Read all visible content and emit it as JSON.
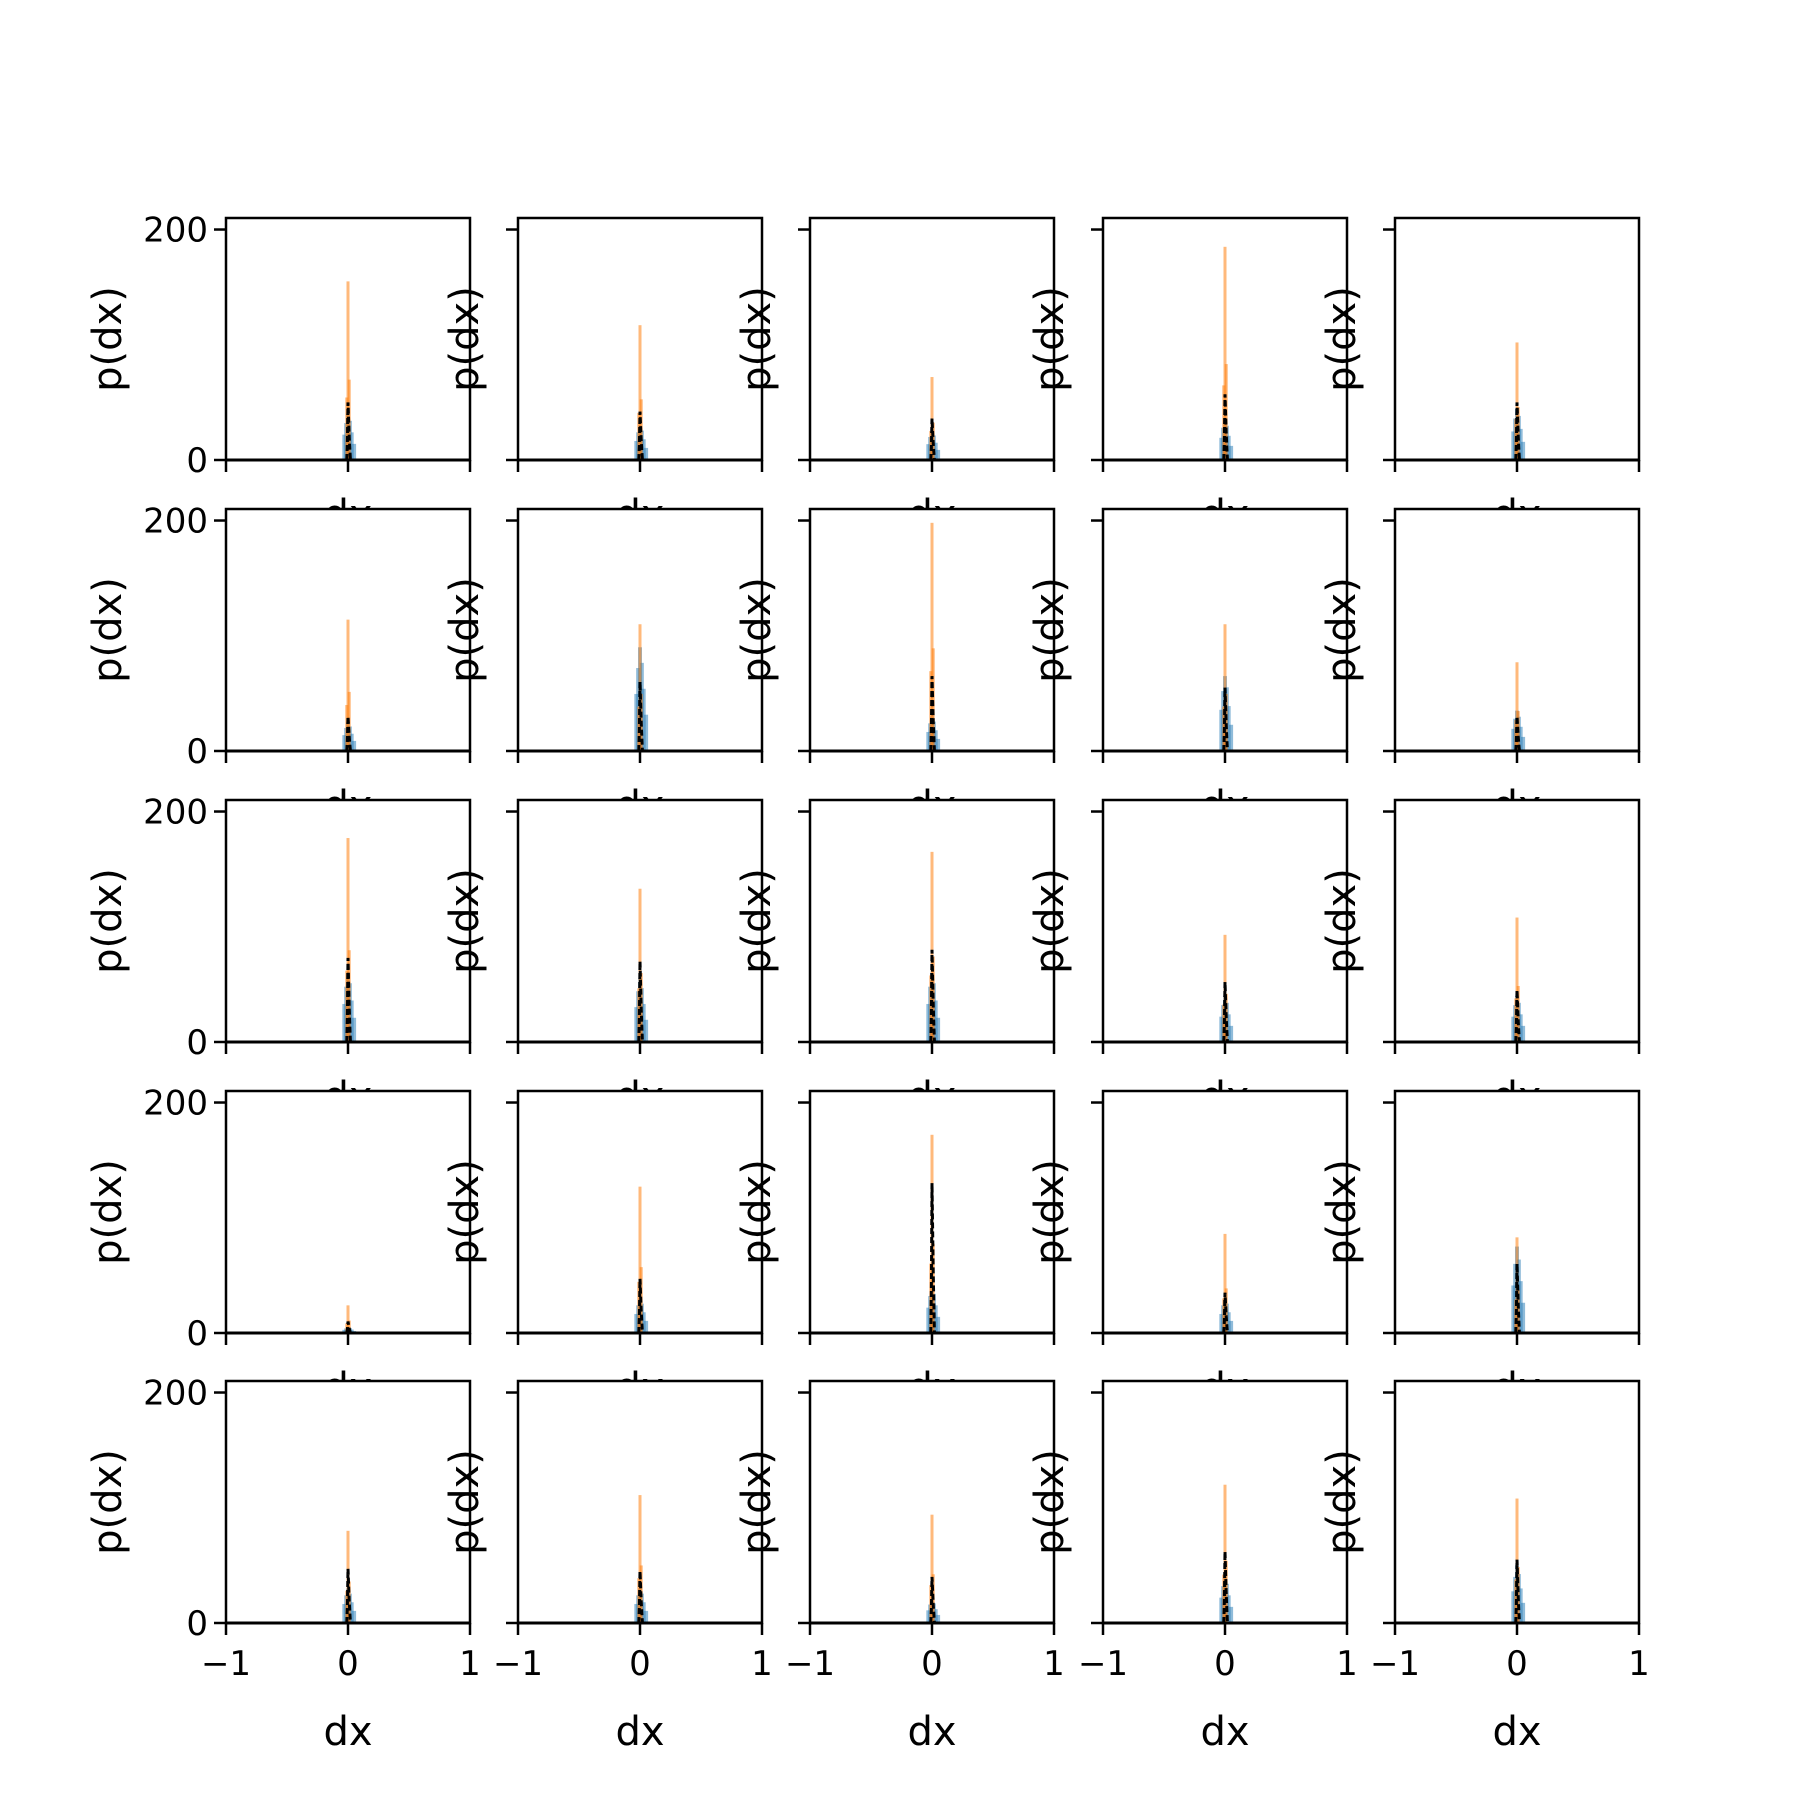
{
  "figure": {
    "rows": 5,
    "cols": 5,
    "xlabel": "dx",
    "ylabel": "p(dx)",
    "x_ticks": [
      "−1",
      "0",
      "1"
    ],
    "y_ticks": [
      "0",
      "200"
    ],
    "colors": {
      "series_blue": "#1f77b4",
      "series_orange": "#ff7f0e",
      "series_black": "#000000",
      "axes": "#000000",
      "background": "#ffffff"
    }
  },
  "chart_data": {
    "type": "line",
    "layout": "5x5 grid of small multiples (histograms of dx)",
    "xlim": [
      -1,
      1
    ],
    "ylim": [
      0,
      210
    ],
    "xlabel": "dx",
    "ylabel": "p(dx)",
    "series_styles": [
      {
        "color": "#1f77b4",
        "style": "translucent histogram"
      },
      {
        "color": "#ff7f0e",
        "style": "translucent histogram"
      },
      {
        "color": "#000000",
        "style": "dashed line"
      }
    ],
    "panels": [
      {
        "row": 0,
        "col": 0,
        "peak_orange": 155,
        "peak_blue": 40,
        "peak_black": 50
      },
      {
        "row": 0,
        "col": 1,
        "peak_orange": 117,
        "peak_blue": 30,
        "peak_black": 42
      },
      {
        "row": 0,
        "col": 2,
        "peak_orange": 72,
        "peak_blue": 25,
        "peak_black": 36
      },
      {
        "row": 0,
        "col": 3,
        "peak_orange": 185,
        "peak_blue": 35,
        "peak_black": 57
      },
      {
        "row": 0,
        "col": 4,
        "peak_orange": 102,
        "peak_blue": 45,
        "peak_black": 50
      },
      {
        "row": 1,
        "col": 0,
        "peak_orange": 114,
        "peak_blue": 25,
        "peak_black": 30
      },
      {
        "row": 1,
        "col": 1,
        "peak_orange": 110,
        "peak_blue": 90,
        "peak_black": 60
      },
      {
        "row": 1,
        "col": 2,
        "peak_orange": 198,
        "peak_blue": 30,
        "peak_black": 65
      },
      {
        "row": 1,
        "col": 3,
        "peak_orange": 110,
        "peak_blue": 65,
        "peak_black": 55
      },
      {
        "row": 1,
        "col": 4,
        "peak_orange": 77,
        "peak_blue": 35,
        "peak_black": 30
      },
      {
        "row": 2,
        "col": 0,
        "peak_orange": 177,
        "peak_blue": 60,
        "peak_black": 73
      },
      {
        "row": 2,
        "col": 1,
        "peak_orange": 133,
        "peak_blue": 55,
        "peak_black": 70
      },
      {
        "row": 2,
        "col": 2,
        "peak_orange": 165,
        "peak_blue": 60,
        "peak_black": 80
      },
      {
        "row": 2,
        "col": 3,
        "peak_orange": 93,
        "peak_blue": 40,
        "peak_black": 52
      },
      {
        "row": 2,
        "col": 4,
        "peak_orange": 108,
        "peak_blue": 40,
        "peak_black": 45
      },
      {
        "row": 3,
        "col": 0,
        "peak_orange": 24,
        "peak_blue": 5,
        "peak_black": 10
      },
      {
        "row": 3,
        "col": 1,
        "peak_orange": 127,
        "peak_blue": 30,
        "peak_black": 47
      },
      {
        "row": 3,
        "col": 2,
        "peak_orange": 172,
        "peak_blue": 40,
        "peak_black": 130
      },
      {
        "row": 3,
        "col": 3,
        "peak_orange": 86,
        "peak_blue": 30,
        "peak_black": 35
      },
      {
        "row": 3,
        "col": 4,
        "peak_orange": 83,
        "peak_blue": 75,
        "peak_black": 60
      },
      {
        "row": 4,
        "col": 0,
        "peak_orange": 80,
        "peak_blue": 30,
        "peak_black": 47
      },
      {
        "row": 4,
        "col": 1,
        "peak_orange": 111,
        "peak_blue": 30,
        "peak_black": 45
      },
      {
        "row": 4,
        "col": 2,
        "peak_orange": 94,
        "peak_blue": 20,
        "peak_black": 40
      },
      {
        "row": 4,
        "col": 3,
        "peak_orange": 120,
        "peak_blue": 40,
        "peak_black": 62
      },
      {
        "row": 4,
        "col": 4,
        "peak_orange": 108,
        "peak_blue": 50,
        "peak_black": 55
      }
    ]
  }
}
